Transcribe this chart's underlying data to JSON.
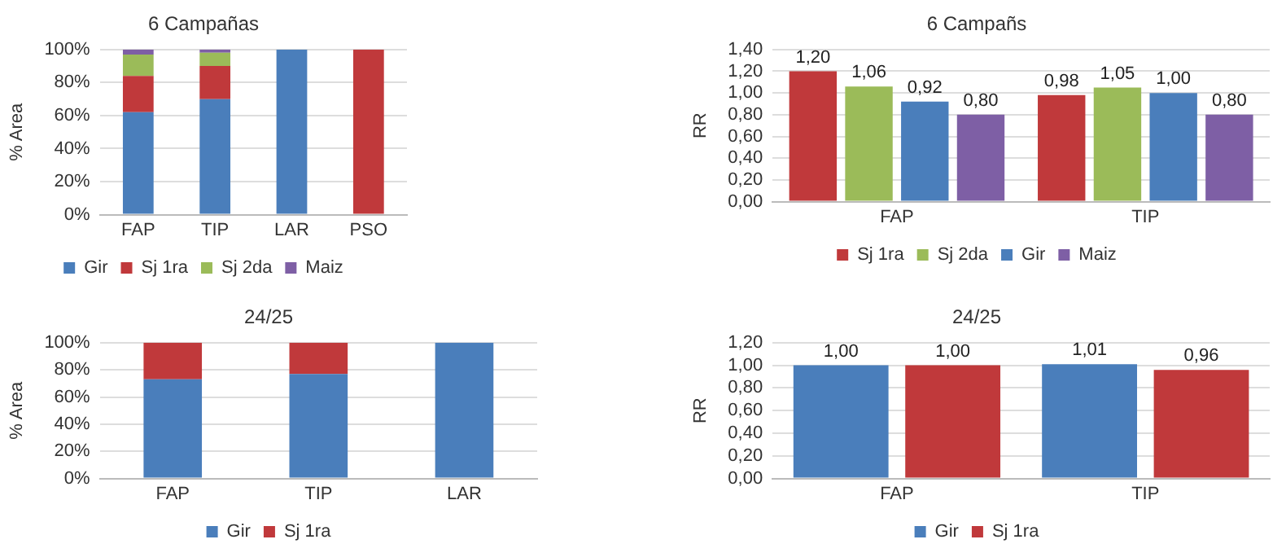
{
  "chart_data": [
    {
      "type": "bar",
      "title": "6 Campañas",
      "ylabel": "% Area",
      "categories": [
        "FAP",
        "TIP",
        "LAR",
        "PSO"
      ],
      "stacked": true,
      "ylim": [
        0,
        100
      ],
      "yticks": [
        {
          "value": 0,
          "label": "0%"
        },
        {
          "value": 20,
          "label": "20%"
        },
        {
          "value": 40,
          "label": "40%"
        },
        {
          "value": 60,
          "label": "60%"
        },
        {
          "value": 80,
          "label": "80%"
        },
        {
          "value": 100,
          "label": "100%"
        }
      ],
      "grid": "y",
      "legend": "bottom",
      "series": [
        {
          "name": "Gir",
          "color": "#4a7ebb",
          "values": [
            62,
            70,
            100,
            0
          ]
        },
        {
          "name": "Sj 1ra",
          "color": "#c0393b",
          "values": [
            22,
            20,
            0,
            100
          ]
        },
        {
          "name": "Sj 2da",
          "color": "#9bbb59",
          "values": [
            13,
            8,
            0,
            0
          ]
        },
        {
          "name": "Maiz",
          "color": "#7e5fa5",
          "values": [
            3,
            2,
            0,
            0
          ]
        }
      ]
    },
    {
      "type": "bar",
      "title": "6 Campañs",
      "ylabel": "RR",
      "categories": [
        "FAP",
        "TIP"
      ],
      "ylim": [
        0,
        1.4
      ],
      "yticks": [
        {
          "value": 0,
          "label": "0,00"
        },
        {
          "value": 0.2,
          "label": "0,20"
        },
        {
          "value": 0.4,
          "label": "0,40"
        },
        {
          "value": 0.6,
          "label": "0,60"
        },
        {
          "value": 0.8,
          "label": "0,80"
        },
        {
          "value": 1.0,
          "label": "1,00"
        },
        {
          "value": 1.2,
          "label": "1,20"
        },
        {
          "value": 1.4,
          "label": "1,40"
        }
      ],
      "grid": "y",
      "legend": "bottom",
      "series": [
        {
          "name": "Sj 1ra",
          "color": "#c0393b",
          "values": [
            1.2,
            0.98
          ],
          "value_labels": [
            "1,20",
            "0,98"
          ]
        },
        {
          "name": "Sj 2da",
          "color": "#9bbb59",
          "values": [
            1.06,
            1.05
          ],
          "value_labels": [
            "1,06",
            "1,05"
          ]
        },
        {
          "name": "Gir",
          "color": "#4a7ebb",
          "values": [
            0.92,
            1.0
          ],
          "value_labels": [
            "0,92",
            "1,00"
          ]
        },
        {
          "name": "Maiz",
          "color": "#7e5fa5",
          "values": [
            0.8,
            0.8
          ],
          "value_labels": [
            "0,80",
            "0,80"
          ]
        }
      ]
    },
    {
      "type": "bar",
      "title": "24/25",
      "ylabel": "% Area",
      "categories": [
        "FAP",
        "TIP",
        "LAR"
      ],
      "stacked": true,
      "ylim": [
        0,
        100
      ],
      "yticks": [
        {
          "value": 0,
          "label": "0%"
        },
        {
          "value": 20,
          "label": "20%"
        },
        {
          "value": 40,
          "label": "40%"
        },
        {
          "value": 60,
          "label": "60%"
        },
        {
          "value": 80,
          "label": "80%"
        },
        {
          "value": 100,
          "label": "100%"
        }
      ],
      "grid": "y",
      "legend": "bottom",
      "series": [
        {
          "name": "Gir",
          "color": "#4a7ebb",
          "values": [
            73,
            77,
            100
          ]
        },
        {
          "name": "Sj 1ra",
          "color": "#c0393b",
          "values": [
            27,
            23,
            0
          ]
        }
      ]
    },
    {
      "type": "bar",
      "title": "24/25",
      "ylabel": "RR",
      "categories": [
        "FAP",
        "TIP"
      ],
      "ylim": [
        0,
        1.2
      ],
      "yticks": [
        {
          "value": 0,
          "label": "0,00"
        },
        {
          "value": 0.2,
          "label": "0,20"
        },
        {
          "value": 0.4,
          "label": "0,40"
        },
        {
          "value": 0.6,
          "label": "0,60"
        },
        {
          "value": 0.8,
          "label": "0,80"
        },
        {
          "value": 1.0,
          "label": "1,00"
        },
        {
          "value": 1.2,
          "label": "1,20"
        }
      ],
      "grid": "y",
      "legend": "bottom",
      "series": [
        {
          "name": "Gir",
          "color": "#4a7ebb",
          "values": [
            1.0,
            1.01
          ],
          "value_labels": [
            "1,00",
            "1,01"
          ]
        },
        {
          "name": "Sj 1ra",
          "color": "#c0393b",
          "values": [
            1.0,
            0.96
          ],
          "value_labels": [
            "1,00",
            "0,96"
          ]
        }
      ]
    }
  ]
}
